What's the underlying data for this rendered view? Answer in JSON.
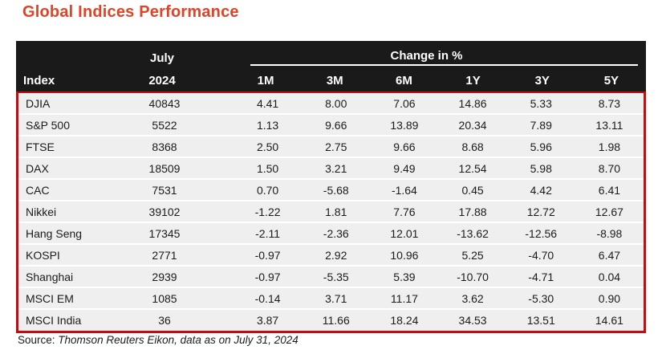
{
  "title": "Global Indices Performance",
  "chart_data": {
    "type": "table",
    "title": "Global Indices Performance",
    "index_header": "Index",
    "value_column_header": {
      "line1": "July",
      "line2": "2024"
    },
    "change_group_label": "Change in %",
    "period_headers": [
      "1M",
      "3M",
      "6M",
      "1Y",
      "3Y",
      "5Y"
    ],
    "rows": [
      {
        "index": "DJIA",
        "july_2024": "40843",
        "changes": [
          "4.41",
          "8.00",
          "7.06",
          "14.86",
          "5.33",
          "8.73"
        ]
      },
      {
        "index": "S&P 500",
        "july_2024": "5522",
        "changes": [
          "1.13",
          "9.66",
          "13.89",
          "20.34",
          "7.89",
          "13.11"
        ]
      },
      {
        "index": "FTSE",
        "july_2024": "8368",
        "changes": [
          "2.50",
          "2.75",
          "9.66",
          "8.68",
          "5.96",
          "1.98"
        ]
      },
      {
        "index": "DAX",
        "july_2024": "18509",
        "changes": [
          "1.50",
          "3.21",
          "9.49",
          "12.54",
          "5.98",
          "8.70"
        ]
      },
      {
        "index": "CAC",
        "july_2024": "7531",
        "changes": [
          "0.70",
          "-5.68",
          "-1.64",
          "0.45",
          "4.42",
          "6.41"
        ]
      },
      {
        "index": "Nikkei",
        "july_2024": "39102",
        "changes": [
          "-1.22",
          "1.81",
          "7.76",
          "17.88",
          "12.72",
          "12.67"
        ]
      },
      {
        "index": "Hang Seng",
        "july_2024": "17345",
        "changes": [
          "-2.11",
          "-2.36",
          "12.01",
          "-13.62",
          "-12.56",
          "-8.98"
        ]
      },
      {
        "index": "KOSPI",
        "july_2024": "2771",
        "changes": [
          "-0.97",
          "2.92",
          "10.96",
          "5.25",
          "-4.70",
          "6.47"
        ]
      },
      {
        "index": "Shanghai",
        "july_2024": "2939",
        "changes": [
          "-0.97",
          "-5.35",
          "5.39",
          "-10.70",
          "-4.71",
          "0.04"
        ]
      },
      {
        "index": "MSCI EM",
        "july_2024": "1085",
        "changes": [
          "-0.14",
          "3.71",
          "11.17",
          "3.62",
          "-5.30",
          "0.90"
        ]
      },
      {
        "index": "MSCI India",
        "july_2024": "36",
        "changes": [
          "3.87",
          "11.66",
          "18.24",
          "34.53",
          "13.51",
          "14.61"
        ]
      }
    ],
    "source": {
      "prefix": "Source:",
      "note": "Thomson Reuters Eikon, data as on July 31, 2024"
    }
  },
  "colors": {
    "title_accent": "#E04327",
    "table_border": "#C00D12",
    "header_bg": "#1A1A1A",
    "header_text": "#FFFFFF",
    "row_bg": "#EFEFEF",
    "row_separator": "#FFFFFF",
    "body_text": "#1B1B1B"
  }
}
